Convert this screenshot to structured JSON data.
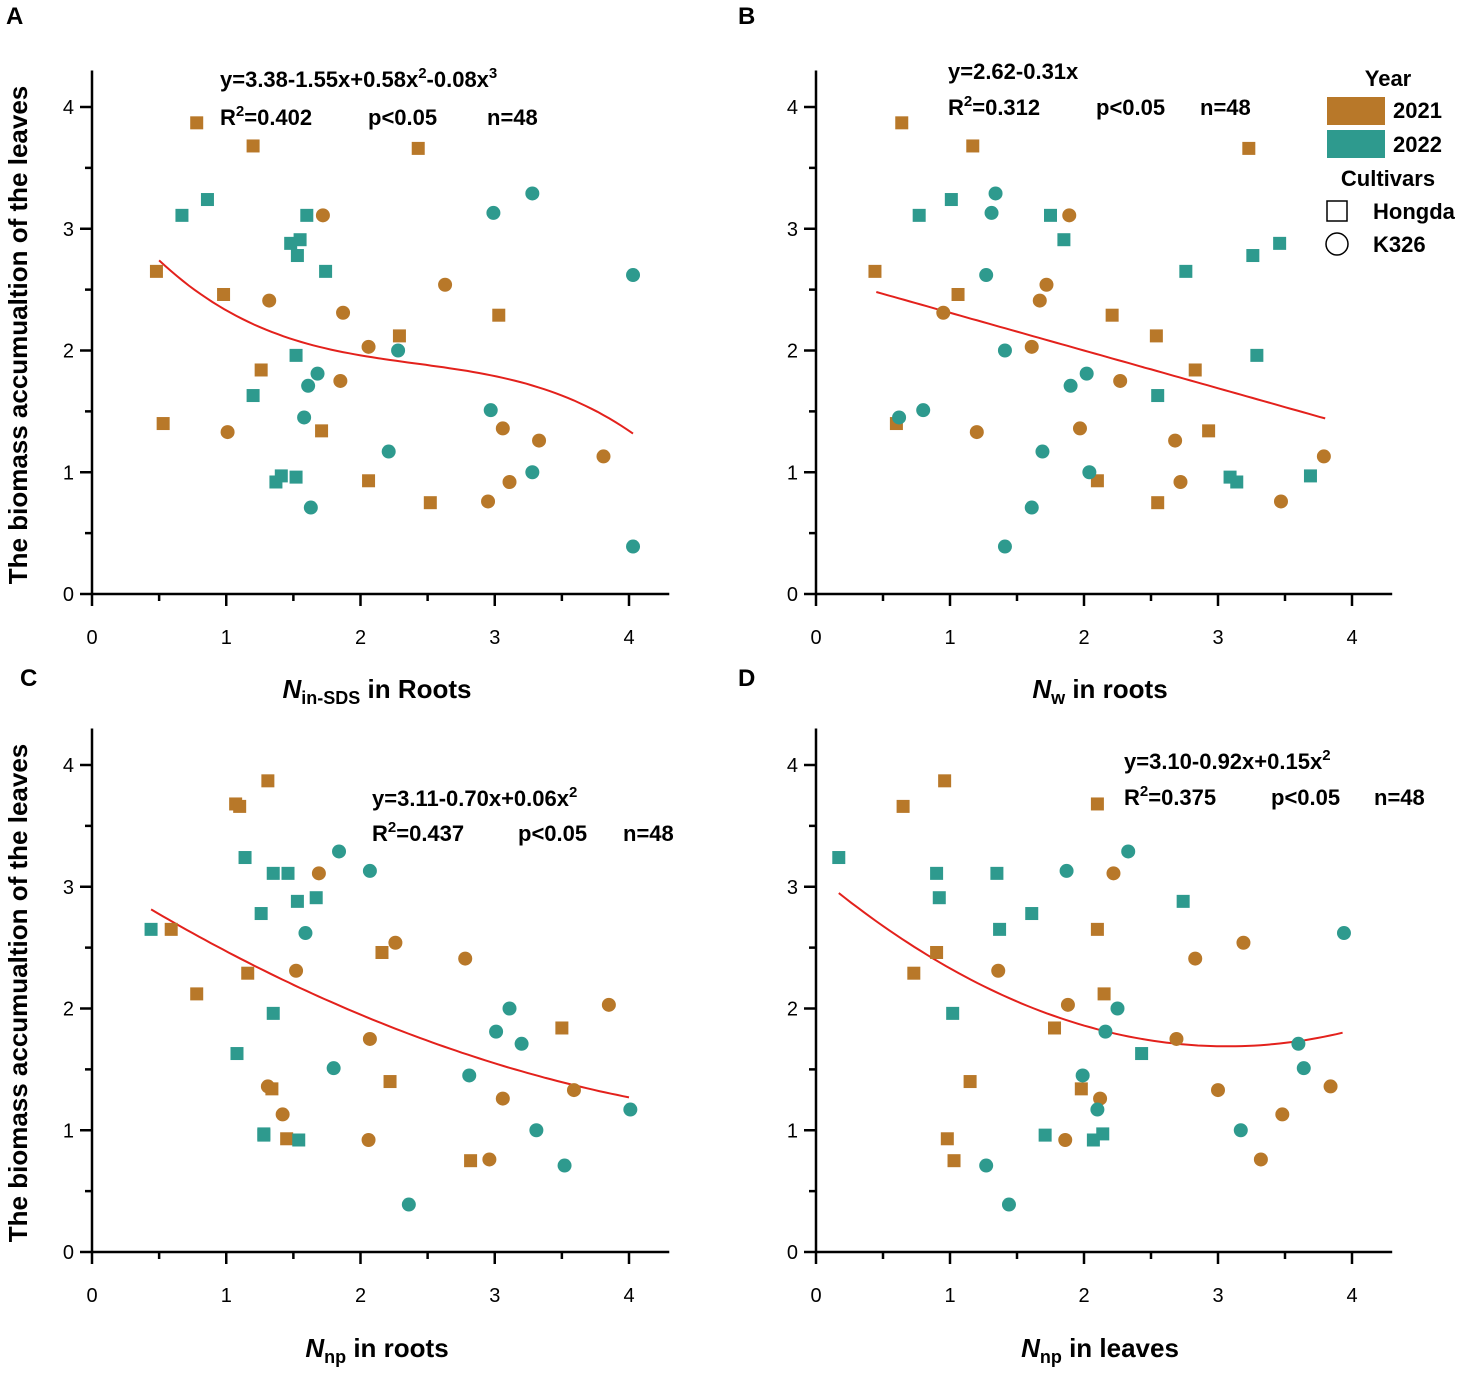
{
  "figure": {
    "ylabel": "The biomass accumualtion of the leaves",
    "colors": {
      "2021": "#B87829",
      "2022": "#2E9A8E",
      "fit": "#E3211C"
    }
  },
  "legend": {
    "year_title": "Year",
    "years": [
      {
        "label": "2021",
        "color": "#B87829"
      },
      {
        "label": "2022",
        "color": "#2E9A8E"
      }
    ],
    "cultivar_title": "Cultivars",
    "cultivars": [
      {
        "label": "Hongda",
        "marker": "square-icon"
      },
      {
        "label": "K326",
        "marker": "circle-icon"
      }
    ]
  },
  "chart_data": [
    {
      "panel": "A",
      "type": "scatter",
      "xlabel_var": "N",
      "xlabel_sub": "in-SDS",
      "xlabel_rest": " in Roots",
      "ylabel": "The biomass accumualtion of the leaves",
      "xlim": [
        0,
        4.3
      ],
      "ylim": [
        0,
        4.3
      ],
      "xticks": [
        0,
        1,
        2,
        3,
        4
      ],
      "yticks": [
        0,
        1,
        2,
        3,
        4
      ],
      "equation": "y=3.38-1.55x+0.58x2-0.08x3",
      "eq_main": "y=3.38-1.55x+0.58x",
      "eq_sup1": "2",
      "eq_mid": "-0.08x",
      "eq_sup2": "3",
      "r2": "R2=0.402",
      "r2_pre": "R",
      "r2_sup": "2",
      "r2_val": "=0.402",
      "p": "p<0.05",
      "n": "n=48",
      "fit": {
        "coef": [
          3.38,
          -1.55,
          0.58,
          -0.08
        ],
        "x_range": [
          0.5,
          4.03
        ]
      },
      "series": [
        {
          "year": "2021",
          "cultivar": "Hongda",
          "marker": "square",
          "points": [
            [
              0.78,
              3.87
            ],
            [
              1.2,
              3.68
            ],
            [
              2.43,
              3.66
            ],
            [
              0.48,
              2.65
            ],
            [
              0.98,
              2.46
            ],
            [
              2.29,
              2.12
            ],
            [
              3.03,
              2.29
            ],
            [
              1.26,
              1.84
            ],
            [
              0.53,
              1.4
            ],
            [
              1.71,
              1.34
            ],
            [
              2.06,
              0.93
            ],
            [
              2.52,
              0.75
            ]
          ]
        },
        {
          "year": "2021",
          "cultivar": "K326",
          "marker": "circle",
          "points": [
            [
              1.72,
              3.11
            ],
            [
              1.32,
              2.41
            ],
            [
              2.63,
              2.54
            ],
            [
              1.87,
              2.31
            ],
            [
              2.06,
              2.03
            ],
            [
              1.85,
              1.75
            ],
            [
              1.01,
              1.33
            ],
            [
              3.06,
              1.36
            ],
            [
              3.33,
              1.26
            ],
            [
              3.11,
              0.92
            ],
            [
              2.95,
              0.76
            ],
            [
              3.81,
              1.13
            ]
          ]
        },
        {
          "year": "2022",
          "cultivar": "Hongda",
          "marker": "square",
          "points": [
            [
              0.86,
              3.24
            ],
            [
              0.67,
              3.11
            ],
            [
              1.6,
              3.11
            ],
            [
              1.55,
              2.91
            ],
            [
              1.48,
              2.88
            ],
            [
              1.53,
              2.78
            ],
            [
              1.74,
              2.65
            ],
            [
              1.52,
              1.96
            ],
            [
              1.2,
              1.63
            ],
            [
              1.41,
              0.97
            ],
            [
              1.52,
              0.96
            ],
            [
              1.37,
              0.92
            ]
          ]
        },
        {
          "year": "2022",
          "cultivar": "K326",
          "marker": "circle",
          "points": [
            [
              3.28,
              3.29
            ],
            [
              2.99,
              3.13
            ],
            [
              4.03,
              2.62
            ],
            [
              2.28,
              2.0
            ],
            [
              1.68,
              1.81
            ],
            [
              1.61,
              1.71
            ],
            [
              1.58,
              1.45
            ],
            [
              2.97,
              1.51
            ],
            [
              2.21,
              1.17
            ],
            [
              3.28,
              1.0
            ],
            [
              1.63,
              0.71
            ],
            [
              4.03,
              0.39
            ]
          ]
        }
      ]
    },
    {
      "panel": "B",
      "type": "scatter",
      "xlabel_var": "N",
      "xlabel_sub": "w",
      "xlabel_rest": " in roots",
      "ylabel": "",
      "xlim": [
        0,
        4.3
      ],
      "ylim": [
        0,
        4.3
      ],
      "xticks": [
        0,
        1,
        2,
        3,
        4
      ],
      "yticks": [
        0,
        1,
        2,
        3,
        4
      ],
      "equation": "y=2.62-0.31x",
      "eq_main": "y=2.62-0.31x",
      "eq_sup1": "",
      "eq_mid": "",
      "eq_sup2": "",
      "r2": "R2=0.312",
      "r2_pre": "R",
      "r2_sup": "2",
      "r2_val": "=0.312",
      "p": "p<0.05",
      "n": "n=48",
      "fit": {
        "coef": [
          2.62,
          -0.31
        ],
        "x_range": [
          0.45,
          3.8
        ]
      },
      "series": [
        {
          "year": "2021",
          "cultivar": "Hongda",
          "marker": "square",
          "points": [
            [
              0.64,
              3.87
            ],
            [
              1.17,
              3.68
            ],
            [
              3.23,
              3.66
            ],
            [
              0.44,
              2.65
            ],
            [
              1.06,
              2.46
            ],
            [
              2.21,
              2.29
            ],
            [
              2.54,
              2.12
            ],
            [
              2.83,
              1.84
            ],
            [
              0.6,
              1.4
            ],
            [
              2.93,
              1.34
            ],
            [
              2.1,
              0.93
            ],
            [
              2.55,
              0.75
            ]
          ]
        },
        {
          "year": "2021",
          "cultivar": "K326",
          "marker": "circle",
          "points": [
            [
              1.89,
              3.11
            ],
            [
              1.67,
              2.41
            ],
            [
              1.72,
              2.54
            ],
            [
              0.95,
              2.31
            ],
            [
              1.61,
              2.03
            ],
            [
              2.27,
              1.75
            ],
            [
              1.2,
              1.33
            ],
            [
              1.97,
              1.36
            ],
            [
              2.68,
              1.26
            ],
            [
              2.72,
              0.92
            ],
            [
              3.47,
              0.76
            ],
            [
              3.79,
              1.13
            ]
          ]
        },
        {
          "year": "2022",
          "cultivar": "Hongda",
          "marker": "square",
          "points": [
            [
              1.01,
              3.24
            ],
            [
              0.77,
              3.11
            ],
            [
              1.75,
              3.11
            ],
            [
              1.85,
              2.91
            ],
            [
              3.46,
              2.88
            ],
            [
              3.26,
              2.78
            ],
            [
              2.76,
              2.65
            ],
            [
              3.29,
              1.96
            ],
            [
              2.55,
              1.63
            ],
            [
              3.69,
              0.97
            ],
            [
              3.09,
              0.96
            ],
            [
              3.14,
              0.92
            ]
          ]
        },
        {
          "year": "2022",
          "cultivar": "K326",
          "marker": "circle",
          "points": [
            [
              1.34,
              3.29
            ],
            [
              1.31,
              3.13
            ],
            [
              1.27,
              2.62
            ],
            [
              1.41,
              2.0
            ],
            [
              2.02,
              1.81
            ],
            [
              1.9,
              1.71
            ],
            [
              0.62,
              1.45
            ],
            [
              0.8,
              1.51
            ],
            [
              1.69,
              1.17
            ],
            [
              2.04,
              1.0
            ],
            [
              1.61,
              0.71
            ],
            [
              1.41,
              0.39
            ]
          ]
        }
      ]
    },
    {
      "panel": "C",
      "type": "scatter",
      "xlabel_var": "N",
      "xlabel_sub": "np",
      "xlabel_rest": " in roots",
      "ylabel": "The biomass accumualtion of the leaves",
      "xlim": [
        0,
        4.3
      ],
      "ylim": [
        0,
        4.3
      ],
      "xticks": [
        0,
        1,
        2,
        3,
        4
      ],
      "yticks": [
        0,
        1,
        2,
        3,
        4
      ],
      "equation": "y=3.11-0.70x+0.06x2",
      "eq_main": "y=3.11-0.70x+0.06x",
      "eq_sup1": "2",
      "eq_mid": "",
      "eq_sup2": "",
      "r2": "R2=0.437",
      "r2_pre": "R",
      "r2_sup": "2",
      "r2_val": "=0.437",
      "p": "p<0.05",
      "n": "n=48",
      "fit": {
        "coef": [
          3.11,
          -0.7,
          0.06
        ],
        "x_range": [
          0.44,
          4.0
        ]
      },
      "series": [
        {
          "year": "2021",
          "cultivar": "Hongda",
          "marker": "square",
          "points": [
            [
              1.31,
              3.87
            ],
            [
              1.07,
              3.68
            ],
            [
              1.1,
              3.66
            ],
            [
              0.59,
              2.65
            ],
            [
              2.16,
              2.46
            ],
            [
              1.16,
              2.29
            ],
            [
              0.78,
              2.12
            ],
            [
              3.5,
              1.84
            ],
            [
              2.22,
              1.4
            ],
            [
              1.34,
              1.34
            ],
            [
              1.45,
              0.93
            ],
            [
              2.82,
              0.75
            ]
          ]
        },
        {
          "year": "2021",
          "cultivar": "K326",
          "marker": "circle",
          "points": [
            [
              1.69,
              3.11
            ],
            [
              2.78,
              2.41
            ],
            [
              2.26,
              2.54
            ],
            [
              1.52,
              2.31
            ],
            [
              3.85,
              2.03
            ],
            [
              2.07,
              1.75
            ],
            [
              1.31,
              1.36
            ],
            [
              3.59,
              1.33
            ],
            [
              3.06,
              1.26
            ],
            [
              1.42,
              1.13
            ],
            [
              2.06,
              0.92
            ],
            [
              2.96,
              0.76
            ]
          ]
        },
        {
          "year": "2022",
          "cultivar": "Hongda",
          "marker": "square",
          "points": [
            [
              1.14,
              3.24
            ],
            [
              1.35,
              3.11
            ],
            [
              1.46,
              3.11
            ],
            [
              1.67,
              2.91
            ],
            [
              1.53,
              2.88
            ],
            [
              1.26,
              2.78
            ],
            [
              0.44,
              2.65
            ],
            [
              1.35,
              1.96
            ],
            [
              1.08,
              1.63
            ],
            [
              1.28,
              0.97
            ],
            [
              1.28,
              0.96
            ],
            [
              1.54,
              0.92
            ]
          ]
        },
        {
          "year": "2022",
          "cultivar": "K326",
          "marker": "circle",
          "points": [
            [
              1.84,
              3.29
            ],
            [
              2.07,
              3.13
            ],
            [
              1.59,
              2.62
            ],
            [
              3.11,
              2.0
            ],
            [
              3.01,
              1.81
            ],
            [
              3.2,
              1.71
            ],
            [
              1.8,
              1.51
            ],
            [
              2.81,
              1.45
            ],
            [
              4.01,
              1.17
            ],
            [
              3.31,
              1.0
            ],
            [
              3.52,
              0.71
            ],
            [
              2.36,
              0.39
            ]
          ]
        }
      ]
    },
    {
      "panel": "D",
      "type": "scatter",
      "xlabel_var": "N",
      "xlabel_sub": "np",
      "xlabel_rest": " in leaves",
      "ylabel": "",
      "xlim": [
        0,
        4.3
      ],
      "ylim": [
        0,
        4.3
      ],
      "xticks": [
        0,
        1,
        2,
        3,
        4
      ],
      "yticks": [
        0,
        1,
        2,
        3,
        4
      ],
      "equation": "y=3.10-0.92x+0.15x2",
      "eq_main": "y=3.10-0.92x+0.15x",
      "eq_sup1": "2",
      "eq_mid": "",
      "eq_sup2": "",
      "r2": "R2=0.375",
      "r2_pre": "R",
      "r2_sup": "2",
      "r2_val": "=0.375",
      "p": "p<0.05",
      "n": "n=48",
      "fit": {
        "coef": [
          3.1,
          -0.92,
          0.15
        ],
        "x_range": [
          0.17,
          3.93
        ]
      },
      "series": [
        {
          "year": "2021",
          "cultivar": "Hongda",
          "marker": "square",
          "points": [
            [
              0.96,
              3.87
            ],
            [
              0.65,
              3.66
            ],
            [
              2.1,
              3.68
            ],
            [
              2.1,
              2.65
            ],
            [
              0.9,
              2.46
            ],
            [
              0.73,
              2.29
            ],
            [
              2.15,
              2.12
            ],
            [
              1.78,
              1.84
            ],
            [
              1.15,
              1.4
            ],
            [
              1.98,
              1.34
            ],
            [
              0.98,
              0.93
            ],
            [
              1.03,
              0.75
            ]
          ]
        },
        {
          "year": "2021",
          "cultivar": "K326",
          "marker": "circle",
          "points": [
            [
              2.22,
              3.11
            ],
            [
              3.19,
              2.54
            ],
            [
              2.83,
              2.41
            ],
            [
              1.36,
              2.31
            ],
            [
              1.88,
              2.03
            ],
            [
              2.69,
              1.75
            ],
            [
              3.0,
              1.33
            ],
            [
              2.12,
              1.26
            ],
            [
              3.84,
              1.36
            ],
            [
              3.48,
              1.13
            ],
            [
              1.86,
              0.92
            ],
            [
              3.32,
              0.76
            ]
          ]
        },
        {
          "year": "2022",
          "cultivar": "Hongda",
          "marker": "square",
          "points": [
            [
              0.17,
              3.24
            ],
            [
              0.9,
              3.11
            ],
            [
              1.35,
              3.11
            ],
            [
              0.92,
              2.91
            ],
            [
              2.74,
              2.88
            ],
            [
              1.61,
              2.78
            ],
            [
              1.37,
              2.65
            ],
            [
              1.02,
              1.96
            ],
            [
              2.43,
              1.63
            ],
            [
              2.14,
              0.97
            ],
            [
              1.71,
              0.96
            ],
            [
              2.07,
              0.92
            ]
          ]
        },
        {
          "year": "2022",
          "cultivar": "K326",
          "marker": "circle",
          "points": [
            [
              2.33,
              3.29
            ],
            [
              1.87,
              3.13
            ],
            [
              3.94,
              2.62
            ],
            [
              2.25,
              2.0
            ],
            [
              2.16,
              1.81
            ],
            [
              3.6,
              1.71
            ],
            [
              3.64,
              1.51
            ],
            [
              1.99,
              1.45
            ],
            [
              2.1,
              1.17
            ],
            [
              3.17,
              1.0
            ],
            [
              1.27,
              0.71
            ],
            [
              1.44,
              0.39
            ]
          ]
        }
      ]
    }
  ]
}
